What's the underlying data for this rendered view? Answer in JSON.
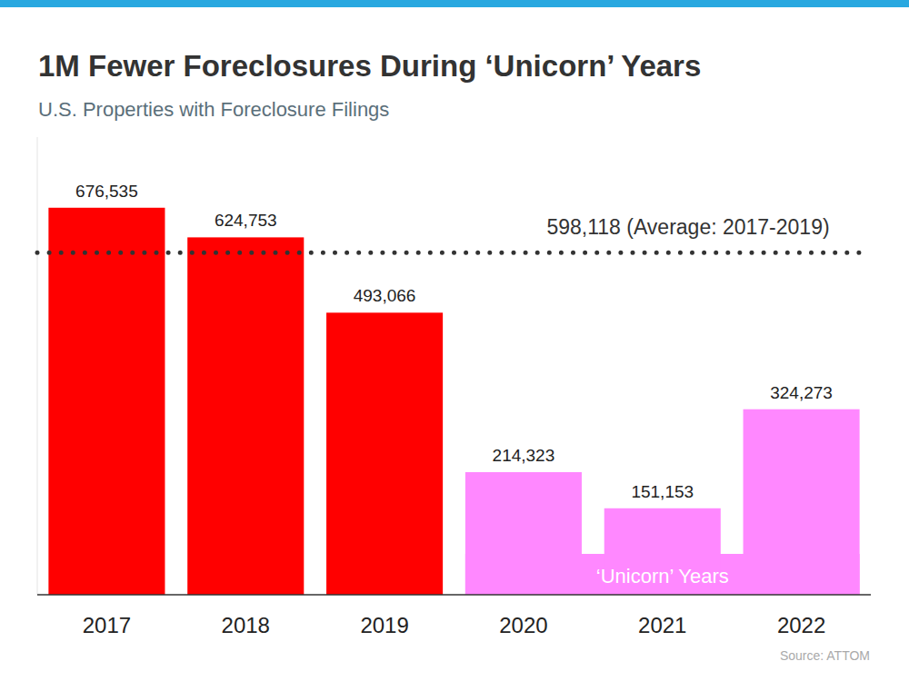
{
  "chart_data": {
    "type": "bar",
    "title": "1M Fewer Foreclosures During ‘Unicorn’ Years",
    "subtitle": "U.S. Properties with Foreclosure Filings",
    "categories": [
      "2017",
      "2018",
      "2019",
      "2020",
      "2021",
      "2022"
    ],
    "values": [
      676535,
      624753,
      493066,
      214323,
      151153,
      324273
    ],
    "value_labels": [
      "676,535",
      "624,753",
      "493,066",
      "214,323",
      "151,153",
      "324,273"
    ],
    "colors": [
      "#ff0000",
      "#ff0000",
      "#ff0000",
      "#ff88ff",
      "#ff88ff",
      "#ff88ff"
    ],
    "ylim": [
      0,
      800000
    ],
    "data_labels": true,
    "tick_labels": "x",
    "annotations": [
      {
        "text": "598,118 (Average: 2017-2019)",
        "value": 598118
      },
      {
        "text": "‘Unicorn’ Years",
        "categories": [
          "2020",
          "2021",
          "2022"
        ]
      }
    ],
    "source": "Source: ATTOM"
  }
}
